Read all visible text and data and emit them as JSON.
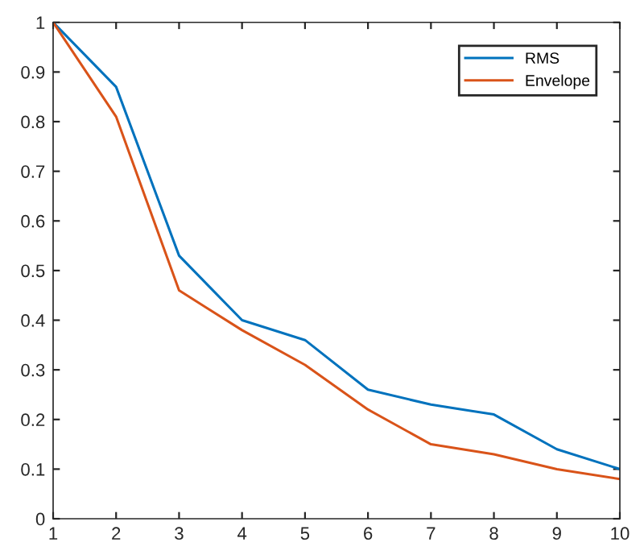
{
  "chart_data": {
    "type": "line",
    "x": [
      1,
      2,
      3,
      4,
      5,
      6,
      7,
      8,
      9,
      10
    ],
    "series": [
      {
        "name": "RMS",
        "color": "#0072bd",
        "values": [
          1,
          0.87,
          0.53,
          0.4,
          0.36,
          0.26,
          0.23,
          0.21,
          0.14,
          0.1
        ]
      },
      {
        "name": "Envelope",
        "color": "#d95319",
        "values": [
          1,
          0.81,
          0.46,
          0.38,
          0.31,
          0.22,
          0.15,
          0.13,
          0.1,
          0.08
        ]
      }
    ],
    "xlim": [
      1,
      10
    ],
    "ylim": [
      0,
      1
    ],
    "xticks": [
      1,
      2,
      3,
      4,
      5,
      6,
      7,
      8,
      9,
      10
    ],
    "yticks": [
      0,
      0.1,
      0.2,
      0.3,
      0.4,
      0.5,
      0.6,
      0.7,
      0.8,
      0.9,
      1
    ],
    "legend": "top right",
    "grid": false
  }
}
